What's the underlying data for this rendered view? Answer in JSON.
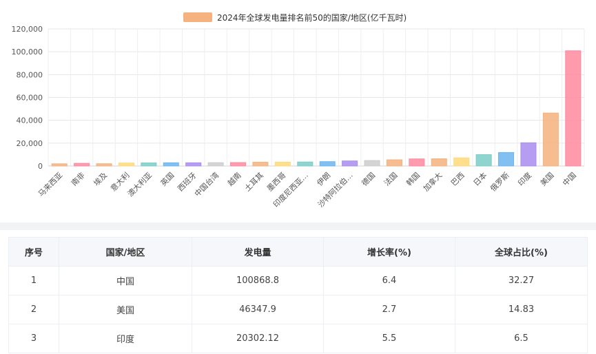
{
  "chart_data": {
    "type": "bar",
    "legend": {
      "label": "2024年全球发电量排名前50的国家/地区(亿千瓦时)",
      "color": "#f5b27e",
      "position": "top"
    },
    "ylim": [
      0,
      120000
    ],
    "yticks": [
      "0",
      "20,000",
      "40,000",
      "60,000",
      "80,000",
      "100,000",
      "120,000"
    ],
    "grid": true,
    "categories": [
      "马来西亚",
      "南非",
      "埃及",
      "意大利",
      "澳大利亚",
      "英国",
      "西班牙",
      "中国台湾",
      "越南",
      "土耳其",
      "墨西哥",
      "印度尼西亚…",
      "伊朗",
      "沙特阿拉伯…",
      "德国",
      "法国",
      "韩国",
      "加拿大",
      "巴西",
      "日本",
      "俄罗斯",
      "印度",
      "美国",
      "中国"
    ],
    "values": [
      1900,
      2300,
      2000,
      2600,
      2700,
      2800,
      2800,
      2900,
      3000,
      3300,
      3400,
      3500,
      3800,
      4400,
      4800,
      5400,
      6200,
      6300,
      7100,
      10000,
      11800,
      20302.12,
      46347.9,
      100868.8
    ],
    "colors": [
      "#f5b27e",
      "#ff8a9f",
      "#f5b27e",
      "#ffd97a",
      "#7ccdc8",
      "#6cb5f0",
      "#a98cf0",
      "#cccccc",
      "#ff8a9f",
      "#f5b27e",
      "#ffd97a",
      "#7ccdc8",
      "#6cb5f0",
      "#a98cf0",
      "#cccccc",
      "#f5b27e",
      "#ff8a9f",
      "#f5b27e",
      "#ffd97a",
      "#7ccdc8",
      "#6cb5f0",
      "#a98cf0",
      "#f5b27e",
      "#ff8a9f"
    ]
  },
  "table": {
    "headers": [
      "序号",
      "国家/地区",
      "发电量",
      "增长率(%)",
      "全球占比(%)"
    ],
    "rows": [
      [
        "1",
        "中国",
        "100868.8",
        "6.4",
        "32.27"
      ],
      [
        "2",
        "美国",
        "46347.9",
        "2.7",
        "14.83"
      ],
      [
        "3",
        "印度",
        "20302.12",
        "5.5",
        "6.5"
      ]
    ]
  }
}
